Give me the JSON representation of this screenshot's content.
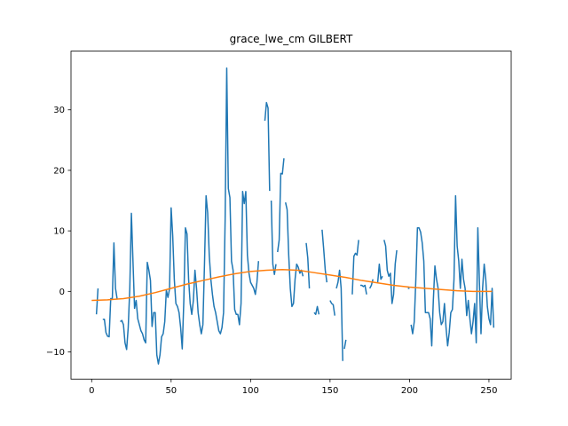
{
  "chart_data": {
    "type": "line",
    "title": "grace_lwe_cm GILBERT",
    "xlabel": "",
    "ylabel": "",
    "xlim": [
      -13,
      264
    ],
    "ylim": [
      -14.5,
      39.7
    ],
    "xticks": [
      0,
      50,
      100,
      150,
      200,
      250
    ],
    "yticks": [
      -10,
      0,
      10,
      20,
      30
    ],
    "grid": false,
    "legend": "none",
    "series": [
      {
        "color": "#1f77b4",
        "segments": [
          [
            [
              3,
              -3.8
            ],
            [
              4,
              0.5
            ]
          ],
          [
            [
              7,
              -4.6
            ],
            [
              8,
              -4.6
            ],
            [
              9,
              -6.8
            ],
            [
              10,
              -7.4
            ],
            [
              11,
              -7.5
            ],
            [
              12,
              -1.2
            ],
            [
              13,
              -1.2
            ],
            [
              14,
              8.0
            ],
            [
              15,
              0.5
            ],
            [
              16,
              -1.2
            ]
          ],
          [
            [
              18,
              -5.0
            ],
            [
              19,
              -4.8
            ],
            [
              20,
              -5.5
            ],
            [
              21,
              -8.5
            ],
            [
              22,
              -9.6
            ],
            [
              23,
              -6.0
            ],
            [
              24,
              0.5
            ],
            [
              25,
              12.9
            ],
            [
              26,
              5.0
            ],
            [
              27,
              -2.8
            ],
            [
              28,
              -1.5
            ],
            [
              29,
              -4.5
            ],
            [
              30,
              -5.5
            ],
            [
              31,
              -6.5
            ],
            [
              32,
              -7.0
            ],
            [
              33,
              -8.0
            ],
            [
              34,
              -8.5
            ],
            [
              35,
              4.8
            ],
            [
              36,
              3.5
            ],
            [
              37,
              1.8
            ],
            [
              38,
              -5.8
            ],
            [
              39,
              -3.5
            ],
            [
              40,
              -3.5
            ],
            [
              41,
              -10.5
            ],
            [
              42,
              -12.0
            ],
            [
              43,
              -10.5
            ],
            [
              44,
              -7.5
            ],
            [
              45,
              -7.0
            ],
            [
              46,
              -5.0
            ],
            [
              47,
              0.2
            ],
            [
              48,
              -1.0
            ],
            [
              49,
              0.4
            ],
            [
              50,
              13.8
            ],
            [
              51,
              9.2
            ],
            [
              52,
              2.0
            ],
            [
              53,
              -2.0
            ],
            [
              54,
              -2.5
            ],
            [
              55,
              -3.5
            ],
            [
              56,
              -6.0
            ],
            [
              57,
              -9.5
            ],
            [
              58,
              -1.5
            ],
            [
              59,
              10.5
            ],
            [
              60,
              9.5
            ],
            [
              61,
              2.0
            ],
            [
              62,
              -2.0
            ],
            [
              63,
              -3.8
            ],
            [
              64,
              -1.5
            ],
            [
              65,
              3.5
            ],
            [
              66,
              0.5
            ],
            [
              67,
              -3.5
            ],
            [
              68,
              -5.5
            ],
            [
              69,
              -7.0
            ],
            [
              70,
              -5.5
            ],
            [
              71,
              4.5
            ],
            [
              72,
              15.8
            ],
            [
              73,
              13.0
            ],
            [
              74,
              6.0
            ],
            [
              75,
              2.0
            ],
            [
              76,
              -0.5
            ],
            [
              77,
              -2.5
            ],
            [
              78,
              -3.5
            ],
            [
              79,
              -5.0
            ],
            [
              80,
              -6.5
            ],
            [
              81,
              -7.0
            ],
            [
              82,
              -6.0
            ],
            [
              83,
              -3.5
            ],
            [
              84,
              12.0
            ],
            [
              85,
              36.9
            ],
            [
              86,
              17.0
            ],
            [
              87,
              15.5
            ],
            [
              88,
              5.0
            ],
            [
              89,
              3.5
            ],
            [
              90,
              -3.0
            ],
            [
              91,
              -3.8
            ],
            [
              92,
              -3.8
            ],
            [
              93,
              -5.5
            ],
            [
              94,
              -2.0
            ],
            [
              95,
              16.5
            ],
            [
              96,
              14.5
            ],
            [
              97,
              16.5
            ],
            [
              98,
              6.0
            ],
            [
              99,
              3.0
            ],
            [
              100,
              1.5
            ],
            [
              101,
              1.0
            ],
            [
              102,
              0.5
            ],
            [
              103,
              -0.5
            ],
            [
              104,
              1.5
            ],
            [
              105,
              5.0
            ]
          ],
          [
            [
              109,
              28.2
            ],
            [
              110,
              31.2
            ],
            [
              111,
              30.3
            ],
            [
              112,
              16.6
            ]
          ],
          [
            [
              113,
              15.0
            ],
            [
              114,
              4.5
            ],
            [
              115,
              2.8
            ],
            [
              116,
              4.5
            ]
          ],
          [
            [
              117,
              6.5
            ],
            [
              118,
              8.5
            ],
            [
              119,
              19.5
            ],
            [
              120,
              19.4
            ],
            [
              121,
              22.0
            ]
          ],
          [
            [
              122,
              14.7
            ],
            [
              123,
              13.5
            ],
            [
              124,
              6.0
            ],
            [
              125,
              0.5
            ],
            [
              126,
              -2.5
            ],
            [
              127,
              -2.0
            ],
            [
              128,
              2.0
            ],
            [
              129,
              4.5
            ],
            [
              130,
              4.0
            ],
            [
              131,
              3.0
            ],
            [
              132,
              3.5
            ],
            [
              133,
              2.5
            ]
          ],
          [
            [
              135,
              8.0
            ],
            [
              136,
              5.5
            ],
            [
              137,
              0.5
            ]
          ],
          [
            [
              140,
              -3.5
            ],
            [
              141,
              -3.8
            ],
            [
              142,
              -2.5
            ],
            [
              143,
              -3.8
            ]
          ],
          [
            [
              145,
              10.2
            ],
            [
              146,
              7.0
            ],
            [
              147,
              3.5
            ],
            [
              148,
              1.5
            ]
          ],
          [
            [
              150,
              -1.5
            ],
            [
              151,
              -2.0
            ],
            [
              152,
              -2.2
            ],
            [
              153,
              -4.0
            ]
          ],
          [
            [
              154,
              0.5
            ],
            [
              155,
              1.5
            ],
            [
              156,
              3.5
            ],
            [
              157,
              0.5
            ],
            [
              158,
              -11.5
            ]
          ],
          [
            [
              159,
              -9.5
            ],
            [
              160,
              -8.0
            ]
          ],
          [
            [
              161,
              -9.3
            ]
          ],
          [
            [
              164,
              -0.5
            ],
            [
              165,
              5.8
            ],
            [
              166,
              6.3
            ],
            [
              167,
              6.0
            ],
            [
              168,
              8.5
            ]
          ],
          [
            [
              169,
              1.0
            ],
            [
              170,
              1.0
            ],
            [
              171,
              0.8
            ],
            [
              172,
              1.0
            ],
            [
              173,
              -0.5
            ]
          ],
          [
            [
              175,
              0.5
            ],
            [
              176,
              1.0
            ],
            [
              177,
              2.0
            ]
          ],
          [
            [
              180,
              1.5
            ],
            [
              181,
              4.5
            ],
            [
              182,
              2.0
            ],
            [
              183,
              2.5
            ]
          ],
          [
            [
              184,
              8.5
            ],
            [
              185,
              7.5
            ],
            [
              186,
              3.5
            ],
            [
              187,
              2.5
            ],
            [
              188,
              3.0
            ],
            [
              189,
              -2.0
            ],
            [
              190,
              -0.5
            ],
            [
              191,
              4.5
            ],
            [
              192,
              6.8
            ]
          ],
          [
            [
              199,
              0.5
            ],
            [
              200,
              0.5
            ]
          ],
          [
            [
              201,
              -5.5
            ],
            [
              202,
              -7.0
            ],
            [
              203,
              -5.0
            ],
            [
              204,
              2.0
            ],
            [
              205,
              10.5
            ],
            [
              206,
              10.5
            ],
            [
              207,
              9.8
            ],
            [
              208,
              8.0
            ],
            [
              209,
              5.0
            ],
            [
              210,
              -3.5
            ],
            [
              211,
              -3.5
            ],
            [
              212,
              -3.5
            ],
            [
              213,
              -4.5
            ],
            [
              214,
              -9.0
            ],
            [
              215,
              -1.5
            ],
            [
              216,
              4.2
            ],
            [
              217,
              2.0
            ],
            [
              218,
              0.5
            ],
            [
              219,
              -3.5
            ],
            [
              220,
              -5.5
            ],
            [
              221,
              -5.0
            ],
            [
              222,
              -2.0
            ],
            [
              223,
              -6.0
            ],
            [
              224,
              -9.0
            ],
            [
              225,
              -6.8
            ],
            [
              226,
              -3.5
            ],
            [
              227,
              -3.0
            ],
            [
              228,
              2.0
            ],
            [
              229,
              15.8
            ],
            [
              230,
              7.5
            ],
            [
              231,
              5.0
            ],
            [
              232,
              0.5
            ],
            [
              233,
              5.3
            ],
            [
              234,
              2.0
            ],
            [
              235,
              0.5
            ],
            [
              236,
              -4.0
            ],
            [
              237,
              -1.5
            ],
            [
              238,
              -4.5
            ],
            [
              239,
              -7.0
            ],
            [
              240,
              -5.0
            ],
            [
              241,
              -2.0
            ],
            [
              242,
              -8.5
            ],
            [
              243,
              10.5
            ],
            [
              244,
              1.5
            ],
            [
              245,
              -7.0
            ],
            [
              246,
              0.5
            ],
            [
              247,
              4.5
            ],
            [
              248,
              2.0
            ],
            [
              249,
              -2.5
            ],
            [
              250,
              -4.5
            ],
            [
              251,
              -5.5
            ],
            [
              252,
              0.5
            ],
            [
              253,
              -6.0
            ]
          ]
        ]
      },
      {
        "color": "#ff7f0e",
        "points": [
          [
            0,
            -1.5
          ],
          [
            10,
            -1.4
          ],
          [
            20,
            -1.2
          ],
          [
            30,
            -0.8
          ],
          [
            40,
            -0.2
          ],
          [
            50,
            0.5
          ],
          [
            60,
            1.2
          ],
          [
            70,
            1.8
          ],
          [
            80,
            2.4
          ],
          [
            90,
            2.9
          ],
          [
            100,
            3.3
          ],
          [
            110,
            3.5
          ],
          [
            120,
            3.6
          ],
          [
            130,
            3.5
          ],
          [
            140,
            3.1
          ],
          [
            150,
            2.7
          ],
          [
            160,
            2.3
          ],
          [
            170,
            1.8
          ],
          [
            180,
            1.4
          ],
          [
            190,
            1.0
          ],
          [
            200,
            0.7
          ],
          [
            210,
            0.5
          ],
          [
            220,
            0.3
          ],
          [
            230,
            0.1
          ],
          [
            240,
            0.0
          ],
          [
            250,
            0.0
          ],
          [
            252,
            0.0
          ]
        ]
      }
    ]
  }
}
